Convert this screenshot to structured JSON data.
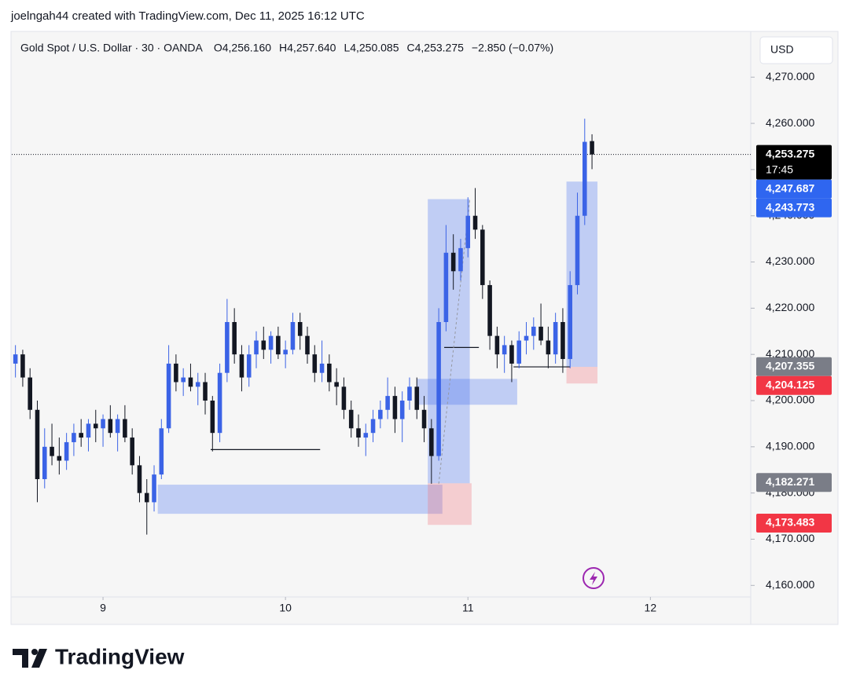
{
  "chart_data": {
    "type": "candlestick",
    "attribution": "joelngah44 created with TradingView.com, Dec 11, 2025 16:12 UTC",
    "legend": [
      "Gold Spot / U.S. Dollar · 30 · OANDA",
      "O4,256.160",
      "H4,257.640",
      "L4,250.085",
      "C4,253.275",
      "−2.850 (−0.07%)"
    ],
    "currency": "USD",
    "brand": "TradingView",
    "up_color": "#3b63e6",
    "down_color": "#131722",
    "xlim": [
      8.5,
      12.55
    ],
    "xticks": [
      9,
      10,
      11,
      12
    ],
    "ylim": [
      4157.5,
      4279.9
    ],
    "yticks": [
      {
        "value": 4160,
        "label": "4,160.000"
      },
      {
        "value": 4170,
        "label": "4,170.000"
      },
      {
        "value": 4180,
        "label": "4,180.000"
      },
      {
        "value": 4190,
        "label": "4,190.000"
      },
      {
        "value": 4200,
        "label": "4,200.000"
      },
      {
        "value": 4210,
        "label": "4,210.000"
      },
      {
        "value": 4220,
        "label": "4,220.000"
      },
      {
        "value": 4230,
        "label": "4,230.000"
      },
      {
        "value": 4240,
        "label": "4,240.000"
      },
      {
        "value": 4250,
        "label": "4,250.000"
      },
      {
        "value": 4260,
        "label": "4,260.000"
      },
      {
        "value": 4270,
        "label": "4,270.000"
      }
    ],
    "x": [
      8.52,
      8.56,
      8.6,
      8.64,
      8.68,
      8.72,
      8.76,
      8.8,
      8.84,
      8.88,
      8.92,
      8.96,
      9.0,
      9.04,
      9.08,
      9.12,
      9.16,
      9.2,
      9.24,
      9.28,
      9.32,
      9.36,
      9.4,
      9.44,
      9.48,
      9.52,
      9.56,
      9.6,
      9.64,
      9.68,
      9.72,
      9.76,
      9.8,
      9.84,
      9.88,
      9.92,
      9.96,
      10.0,
      10.04,
      10.08,
      10.12,
      10.16,
      10.2,
      10.24,
      10.28,
      10.32,
      10.36,
      10.4,
      10.44,
      10.48,
      10.52,
      10.56,
      10.6,
      10.64,
      10.68,
      10.72,
      10.76,
      10.8,
      10.84,
      10.88,
      10.92,
      10.96,
      11.0,
      11.04,
      11.08,
      11.12,
      11.16,
      11.2,
      11.24,
      11.28,
      11.32,
      11.36,
      11.4,
      11.44,
      11.48,
      11.52,
      11.56,
      11.6,
      11.64,
      11.68
    ],
    "candles": [
      [
        4208,
        4212,
        4205,
        4210
      ],
      [
        4210,
        4211,
        4203,
        4205
      ],
      [
        4205,
        4207,
        4196,
        4198
      ],
      [
        4198,
        4200,
        4178,
        4183
      ],
      [
        4183,
        4194,
        4181,
        4190
      ],
      [
        4190,
        4195,
        4186,
        4188
      ],
      [
        4188,
        4192,
        4184,
        4187
      ],
      [
        4187,
        4193,
        4185,
        4191
      ],
      [
        4191,
        4195,
        4188,
        4193
      ],
      [
        4193,
        4196,
        4190,
        4192
      ],
      [
        4192,
        4196,
        4189,
        4195
      ],
      [
        4195,
        4198,
        4191,
        4194
      ],
      [
        4194,
        4197,
        4190,
        4196
      ],
      [
        4196,
        4199,
        4192,
        4193
      ],
      [
        4193,
        4197,
        4189,
        4196
      ],
      [
        4196,
        4199,
        4191,
        4192
      ],
      [
        4192,
        4194,
        4184,
        4186
      ],
      [
        4186,
        4188,
        4178,
        4180
      ],
      [
        4180,
        4183,
        4171,
        4178
      ],
      [
        4178,
        4186,
        4176,
        4184
      ],
      [
        4184,
        4196,
        4183,
        4194
      ],
      [
        4194,
        4212,
        4193,
        4208
      ],
      [
        4208,
        4210,
        4202,
        4204
      ],
      [
        4204,
        4207,
        4201,
        4205
      ],
      [
        4205,
        4208,
        4202,
        4203
      ],
      [
        4203,
        4206,
        4199,
        4204
      ],
      [
        4204,
        4206,
        4197,
        4200
      ],
      [
        4200,
        4201,
        4189,
        4193
      ],
      [
        4193,
        4208,
        4191,
        4206
      ],
      [
        4206,
        4222,
        4204,
        4217
      ],
      [
        4217,
        4220,
        4208,
        4210
      ],
      [
        4210,
        4212,
        4202,
        4205
      ],
      [
        4205,
        4212,
        4203,
        4210
      ],
      [
        4210,
        4215,
        4207,
        4213
      ],
      [
        4213,
        4216,
        4209,
        4211
      ],
      [
        4211,
        4215,
        4208,
        4214
      ],
      [
        4214,
        4216,
        4209,
        4210
      ],
      [
        4210,
        4213,
        4207,
        4211
      ],
      [
        4211,
        4219,
        4210,
        4217
      ],
      [
        4217,
        4219,
        4211,
        4214
      ],
      [
        4214,
        4216,
        4208,
        4210
      ],
      [
        4210,
        4212,
        4204,
        4206
      ],
      [
        4206,
        4213,
        4204,
        4208
      ],
      [
        4208,
        4210,
        4202,
        4204
      ],
      [
        4204,
        4207,
        4199,
        4203
      ],
      [
        4203,
        4205,
        4196,
        4198
      ],
      [
        4198,
        4200,
        4192,
        4194
      ],
      [
        4194,
        4197,
        4190,
        4192
      ],
      [
        4192,
        4195,
        4188,
        4193
      ],
      [
        4193,
        4198,
        4191,
        4196
      ],
      [
        4196,
        4200,
        4194,
        4198
      ],
      [
        4198,
        4205,
        4196,
        4201
      ],
      [
        4201,
        4203,
        4193,
        4196
      ],
      [
        4196,
        4202,
        4191,
        4200
      ],
      [
        4200,
        4205,
        4198,
        4203
      ],
      [
        4203,
        4205,
        4196,
        4198
      ],
      [
        4198,
        4201,
        4191,
        4194
      ],
      [
        4194,
        4196,
        4182,
        4188
      ],
      [
        4188,
        4220,
        4187,
        4217
      ],
      [
        4217,
        4238,
        4215,
        4232
      ],
      [
        4232,
        4236,
        4224,
        4228
      ],
      [
        4228,
        4235,
        4226,
        4233
      ],
      [
        4233,
        4244,
        4231,
        4240
      ],
      [
        4240,
        4246,
        4235,
        4237
      ],
      [
        4237,
        4238,
        4222,
        4225
      ],
      [
        4225,
        4226,
        4211,
        4214
      ],
      [
        4214,
        4216,
        4207,
        4210
      ],
      [
        4210,
        4214,
        4206,
        4212
      ],
      [
        4212,
        4213,
        4204,
        4208
      ],
      [
        4208,
        4215,
        4207,
        4213
      ],
      [
        4213,
        4217,
        4210,
        4214
      ],
      [
        4214,
        4218,
        4211,
        4216
      ],
      [
        4216,
        4221,
        4212,
        4213
      ],
      [
        4213,
        4216,
        4207,
        4210
      ],
      [
        4210,
        4219,
        4208,
        4217
      ],
      [
        4217,
        4220,
        4206,
        4209
      ],
      [
        4209,
        4228,
        4207,
        4225
      ],
      [
        4225,
        4245,
        4223,
        4240
      ],
      [
        4240,
        4261,
        4238,
        4256
      ],
      [
        4256.16,
        4257.64,
        4250.085,
        4253.275
      ]
    ],
    "zones": [
      {
        "x": [
          10.78,
          11.01
        ],
        "y": [
          4182.1,
          4243.6
        ],
        "color": "rgba(66,110,240,0.30)"
      },
      {
        "x": [
          9.3,
          10.86
        ],
        "y": [
          4175.5,
          4181.8
        ],
        "color": "rgba(66,110,240,0.30)"
      },
      {
        "x": [
          10.78,
          11.02
        ],
        "y": [
          4173.1,
          4182.1
        ],
        "color": "rgba(240,110,120,0.30)"
      },
      {
        "x": [
          10.72,
          11.27
        ],
        "y": [
          4199.1,
          4204.7
        ],
        "color": "rgba(66,110,240,0.30)"
      },
      {
        "x": [
          11.54,
          11.71
        ],
        "y": [
          4207.3,
          4247.4
        ],
        "color": "rgba(66,110,240,0.30)"
      },
      {
        "x": [
          11.54,
          11.71
        ],
        "y": [
          4203.7,
          4207.3
        ],
        "color": "rgba(240,110,120,0.30)"
      }
    ],
    "levels": [
      {
        "x": [
          9.59,
          10.19
        ],
        "y": 4189.4
      },
      {
        "x": [
          10.87,
          11.06
        ],
        "y": 4211.5
      },
      {
        "x": [
          11.25,
          11.56
        ],
        "y": 4207.3
      }
    ],
    "path_line": {
      "x": [
        10.84,
        11.01
      ],
      "y": [
        4182,
        4243.6
      ]
    },
    "price_labels": [
      {
        "value": 4253.275,
        "label": "4,253.275",
        "time": "17:45",
        "color": "#000000"
      },
      {
        "value": 4247.687,
        "label": "4,247.687",
        "color": "#2f66f0"
      },
      {
        "value": 4243.773,
        "label": "4,243.773",
        "color": "#2f66f0"
      },
      {
        "value": 4207.355,
        "label": "4,207.355",
        "color": "#7a7d87"
      },
      {
        "value": 4204.125,
        "label": "4,204.125",
        "color": "#f23645"
      },
      {
        "value": 4182.271,
        "label": "4,182.271",
        "color": "#7a7d87"
      },
      {
        "value": 4173.483,
        "label": "4,173.483",
        "color": "#f23645"
      }
    ]
  }
}
